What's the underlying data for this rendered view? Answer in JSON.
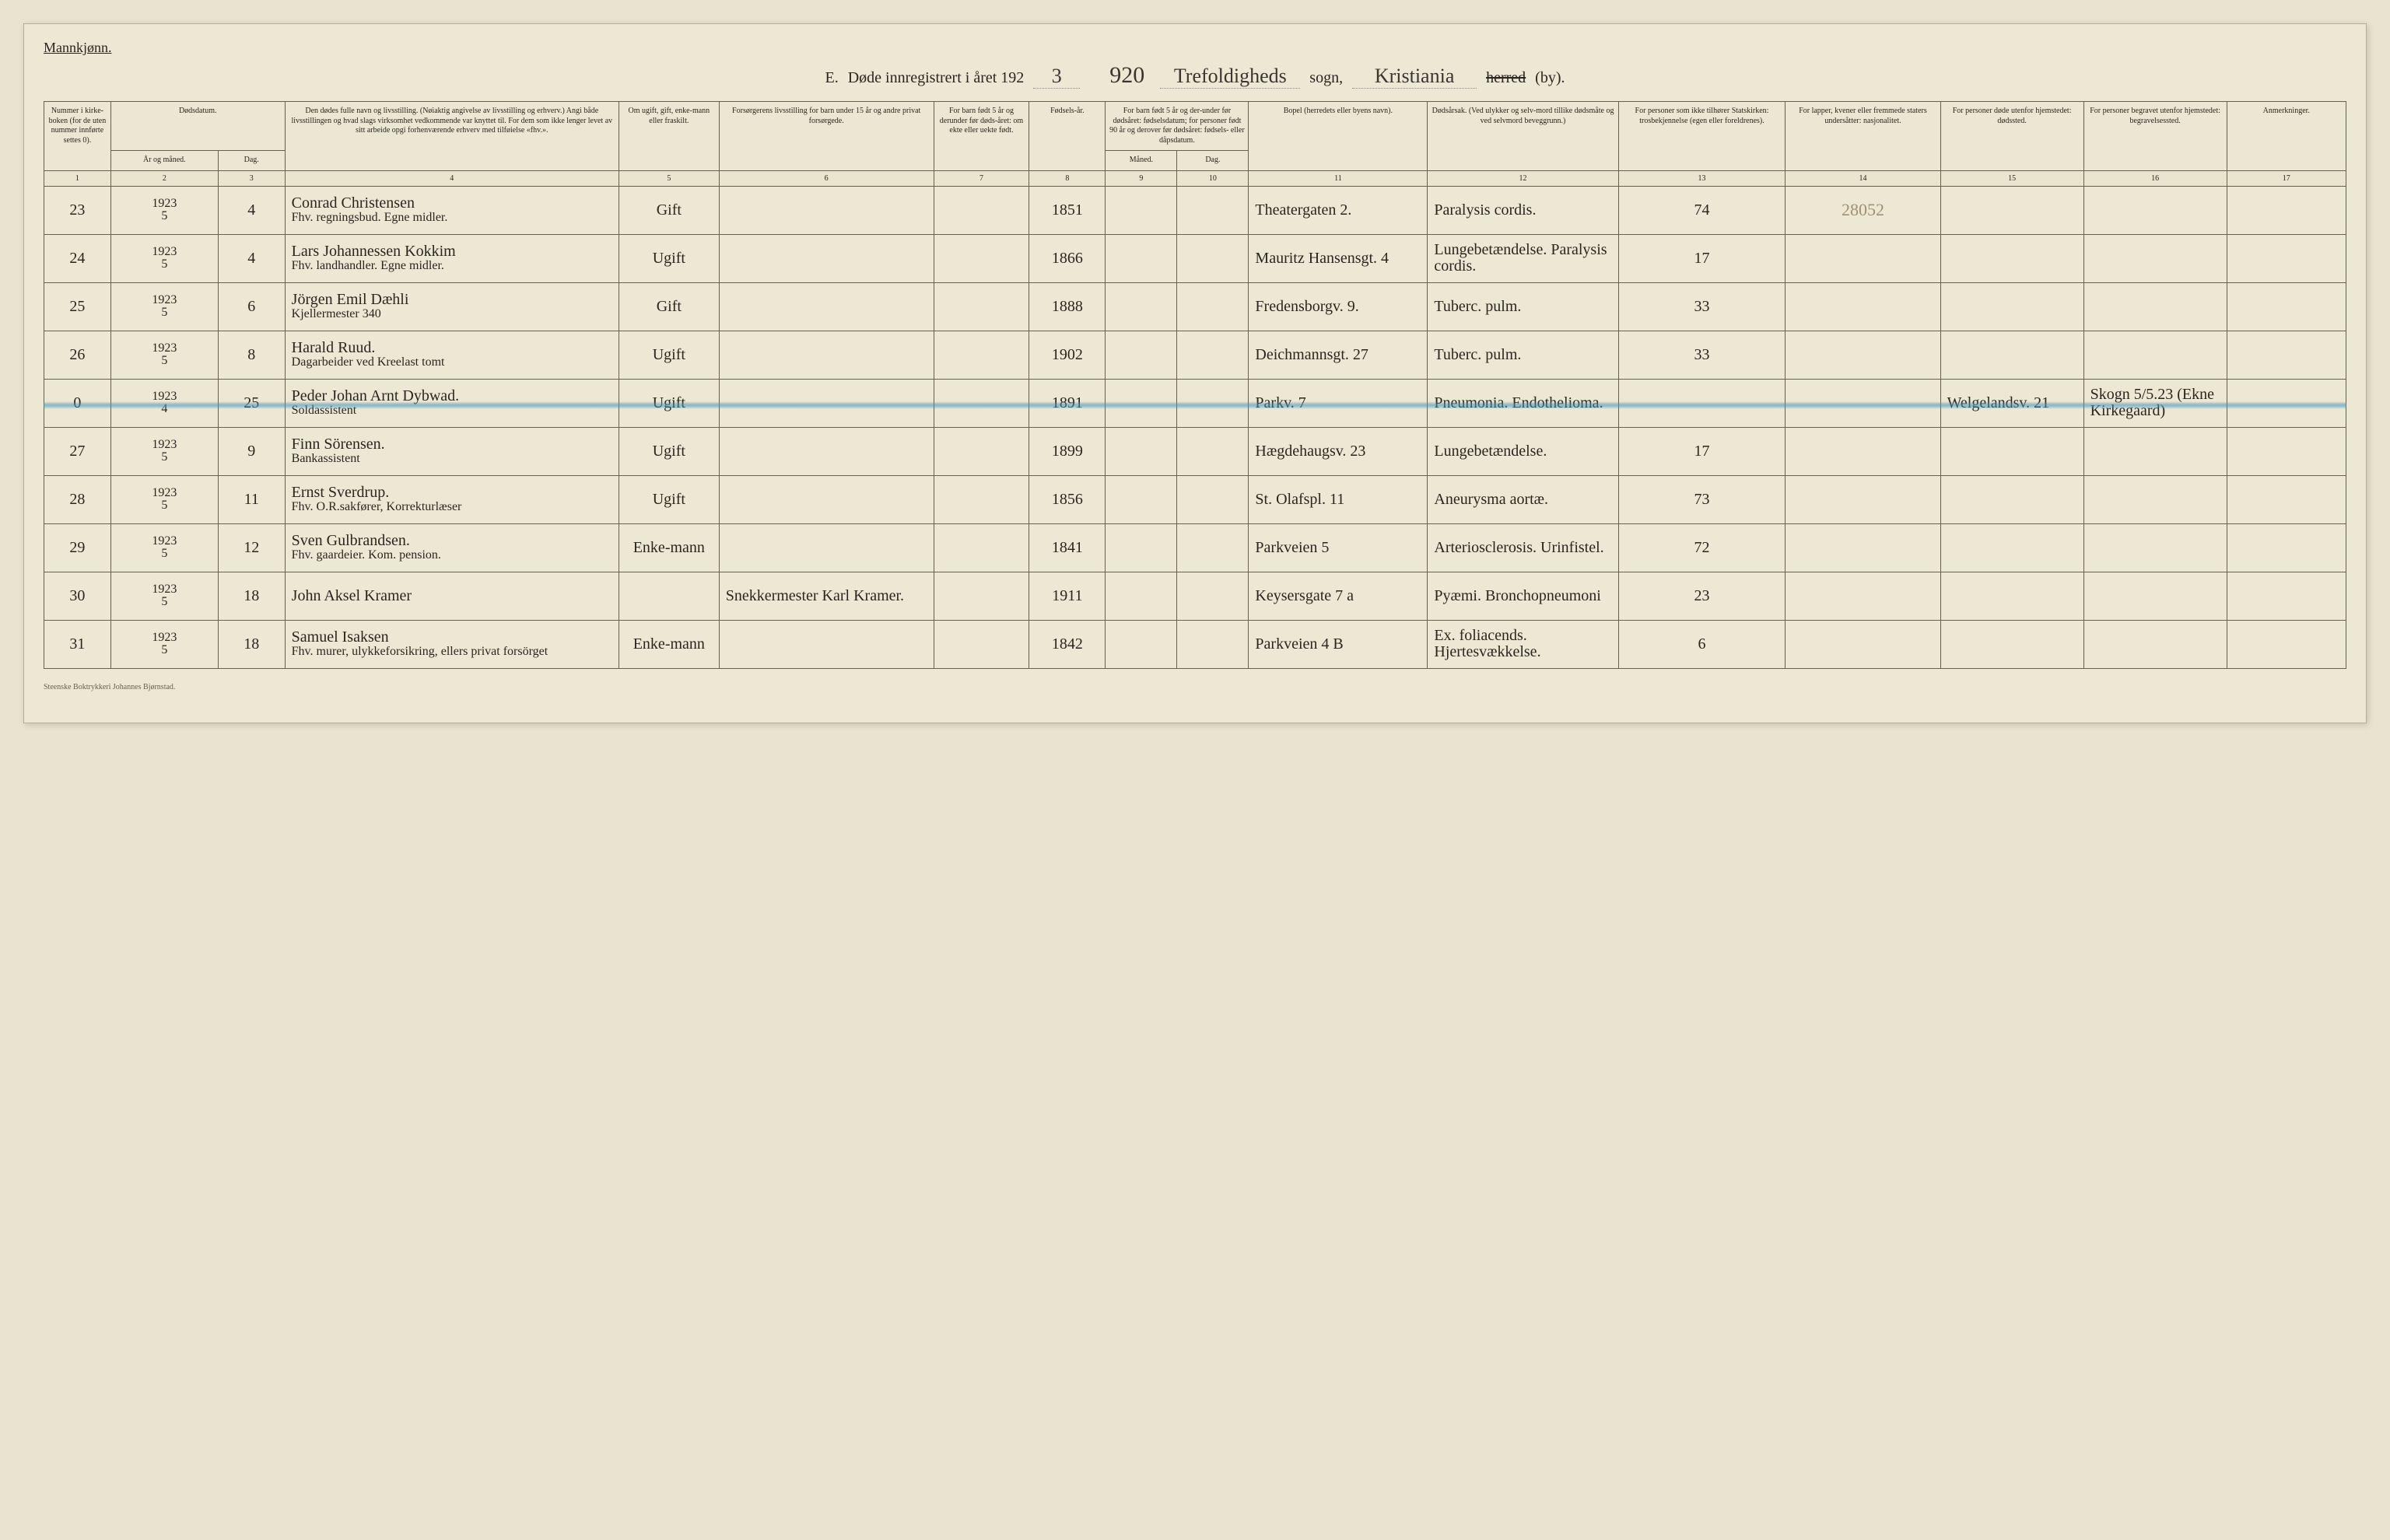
{
  "header": {
    "gender_label": "Mannkjønn.",
    "section_letter": "E.",
    "title_prefix": "Døde innregistrert i året 192",
    "year_suffix": "3",
    "page_number_hand": "920",
    "parish_hand": "Trefoldigheds",
    "sogn_label": "sogn,",
    "city_hand": "Kristiania",
    "herred_label_struck": "herred",
    "by_label": "(by)."
  },
  "columns": {
    "c1": "Nummer i kirke-boken (for de uten nummer innførte settes 0).",
    "c2a": "Dødsdatum.",
    "c2_sub_a": "År og måned.",
    "c2_sub_b": "Dag.",
    "c4": "Den dødes fulle navn og livsstilling. (Nøiaktig angivelse av livsstilling og erhverv.) Angi både livsstillingen og hvad slags virksomhet vedkommende var knyttet til. For dem som ikke lenger levet av sitt arbeide opgi forhenværende erhverv med tilføielse «fhv.».",
    "c5": "Om ugift, gift, enke-mann eller fraskilt.",
    "c6": "Forsørgerens livsstilling for barn under 15 år og andre privat forsørgede.",
    "c7": "For barn født 5 år og derunder før døds-året: om ekte eller uekte født.",
    "c8": "Fødsels-år.",
    "c9_10": "For barn født 5 år og der-under før dødsåret: fødselsdatum; for personer født 90 år og derover før dødsåret: fødsels- eller dåpsdatum.",
    "c9": "Måned.",
    "c10": "Dag.",
    "c11": "Bopel (herredets eller byens navn).",
    "c12": "Dødsårsak. (Ved ulykker og selv-mord tillike dødsmåte og ved selvmord beveggrunn.)",
    "c13": "For personer som ikke tilhører Statskirken: trosbekjennelse (egen eller foreldrenes).",
    "c14": "For lapper, kvener eller fremmede staters undersåtter: nasjonalitet.",
    "c15": "For personer døde utenfor hjemstedet: dødssted.",
    "c16": "For personer begravet utenfor hjemstedet: begravelsessted.",
    "c17": "Anmerkninger."
  },
  "colnums": [
    "1",
    "2",
    "3",
    "4",
    "5",
    "6",
    "7",
    "8",
    "9",
    "10",
    "11",
    "12",
    "13",
    "14",
    "15",
    "16",
    "17"
  ],
  "rows": [
    {
      "num": "23",
      "year": "1923",
      "month": "5",
      "day": "4",
      "name": "Conrad Christensen",
      "name2": "Fhv. regningsbud. Egne midler.",
      "civil": "Gift",
      "provider": "",
      "ekte": "",
      "birth": "1851",
      "bmon": "",
      "bday": "",
      "residence": "Theatergaten 2.",
      "cause": "Paralysis cordis.",
      "faith": "74",
      "nation_pencil": "28052",
      "deathplace": "",
      "burial": "",
      "notes": ""
    },
    {
      "num": "24",
      "year": "1923",
      "month": "5",
      "day": "4",
      "name": "Lars Johannessen Kokkim",
      "name2": "Fhv. landhandler. Egne midler.",
      "civil": "Ugift",
      "provider": "",
      "ekte": "",
      "birth": "1866",
      "bmon": "",
      "bday": "",
      "residence": "Mauritz Hansensgt. 4",
      "cause": "Lungebetændelse. Paralysis cordis.",
      "faith": "17",
      "nation_pencil": "",
      "deathplace": "",
      "burial": "",
      "notes": ""
    },
    {
      "num": "25",
      "year": "1923",
      "month": "5",
      "day": "6",
      "name": "Jörgen Emil Dæhli",
      "name2": "Kjellermester 340",
      "civil": "Gift",
      "provider": "",
      "ekte": "",
      "birth": "1888",
      "bmon": "",
      "bday": "",
      "residence": "Fredensborgv. 9.",
      "cause": "Tuberc. pulm.",
      "faith": "33",
      "nation_pencil": "",
      "deathplace": "",
      "burial": "",
      "notes": ""
    },
    {
      "num": "26",
      "year": "1923",
      "month": "5",
      "day": "8",
      "name": "Harald Ruud.",
      "name2": "Dagarbeider ved Kreelast tomt",
      "civil": "Ugift",
      "provider": "",
      "ekte": "",
      "birth": "1902",
      "bmon": "",
      "bday": "",
      "residence": "Deichmannsgt. 27",
      "cause": "Tuberc. pulm.",
      "faith": "33",
      "nation_pencil": "",
      "deathplace": "",
      "burial": "",
      "notes": ""
    },
    {
      "num": "0",
      "year": "1923",
      "month": "4",
      "day": "25",
      "name": "Peder Johan Arnt Dybwad.",
      "name2": "Soldassistent",
      "civil": "Ugift",
      "provider": "",
      "ekte": "",
      "birth": "1891",
      "bmon": "",
      "bday": "",
      "residence": "Parkv. 7",
      "cause": "Pneumonia. Endothelioma.",
      "faith": "",
      "nation_pencil": "",
      "deathplace": "Welgelandsv. 21",
      "burial": "Skogn 5/5.23 (Ekne Kirkegaard)",
      "notes": ""
    },
    {
      "num": "27",
      "year": "1923",
      "month": "5",
      "day": "9",
      "name": "Finn Sörensen.",
      "name2": "Bankassistent",
      "civil": "Ugift",
      "provider": "",
      "ekte": "",
      "birth": "1899",
      "bmon": "",
      "bday": "",
      "residence": "Hægdehaugsv. 23",
      "cause": "Lungebetændelse.",
      "faith": "17",
      "nation_pencil": "",
      "deathplace": "",
      "burial": "",
      "notes": ""
    },
    {
      "num": "28",
      "year": "1923",
      "month": "5",
      "day": "11",
      "name": "Ernst Sverdrup.",
      "name2": "Fhv. O.R.sakfører, Korrekturlæser",
      "civil": "Ugift",
      "provider": "",
      "ekte": "",
      "birth": "1856",
      "bmon": "",
      "bday": "",
      "residence": "St. Olafspl. 11",
      "cause": "Aneurysma aortæ.",
      "faith": "73",
      "nation_pencil": "",
      "deathplace": "",
      "burial": "",
      "notes": ""
    },
    {
      "num": "29",
      "year": "1923",
      "month": "5",
      "day": "12",
      "name": "Sven Gulbrandsen.",
      "name2": "Fhv. gaardeier. Kom. pension.",
      "civil": "Enke-mann",
      "provider": "",
      "ekte": "",
      "birth": "1841",
      "bmon": "",
      "bday": "",
      "residence": "Parkveien 5",
      "cause": "Arteriosclerosis. Urinfistel.",
      "faith": "72",
      "nation_pencil": "",
      "deathplace": "",
      "burial": "",
      "notes": ""
    },
    {
      "num": "30",
      "year": "1923",
      "month": "5",
      "day": "18",
      "name": "John Aksel Kramer",
      "name2": "",
      "civil": "",
      "provider": "Snekkermester Karl Kramer.",
      "ekte": "",
      "birth": "1911",
      "bmon": "",
      "bday": "",
      "residence": "Keysersgate 7 a",
      "cause": "Pyæmi. Bronchopneumoni",
      "faith": "23",
      "nation_pencil": "",
      "deathplace": "",
      "burial": "",
      "notes": ""
    },
    {
      "num": "31",
      "year": "1923",
      "month": "5",
      "day": "18",
      "name": "Samuel Isaksen",
      "name2": "Fhv. murer, ulykkeforsikring, ellers privat forsörget",
      "civil": "Enke-mann",
      "provider": "",
      "ekte": "",
      "birth": "1842",
      "bmon": "",
      "bday": "",
      "residence": "Parkveien 4 B",
      "cause": "Ex. foliacends. Hjertesvækkelse.",
      "faith": "6",
      "nation_pencil": "",
      "deathplace": "",
      "burial": "",
      "notes": ""
    }
  ],
  "footer_imprint": "Steenske Boktrykkeri Johannes Bjørnstad.",
  "style": {
    "page_bg": "#ede8d4",
    "body_bg": "#e8e4d0",
    "border_color": "#6a5f48",
    "hand_color": "#2a2520",
    "pencil_color": "#a09070",
    "blue_strike_color": "rgba(70,150,190,0.55)",
    "blue_strike_top_pct": 50.5
  }
}
